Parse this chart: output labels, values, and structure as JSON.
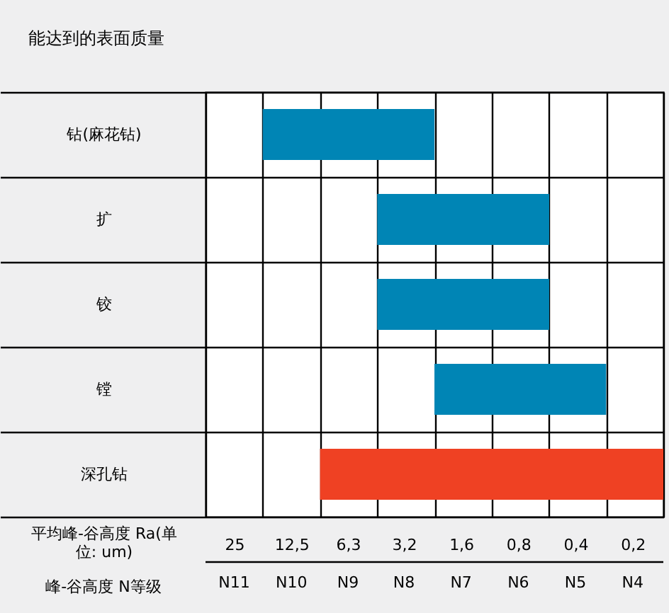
{
  "chart_data": {
    "type": "bar",
    "orientation": "horizontal",
    "title": "能达到的表面质量",
    "xlabel": "平均峰-谷高度 Ra(单位: um)",
    "categories": [
      "钻(麻花钻)",
      "扩",
      "铰",
      "镗",
      "深孔钻"
    ],
    "base": [
      17.7,
      4.42,
      4.42,
      2.21,
      8.84
    ],
    "values": [
      -15.49,
      -3.87,
      -3.87,
      -1.934,
      -8.702
    ],
    "colors": [
      "#0085b5",
      "#0085b5",
      "#0085b5",
      "#0085b5",
      "#ef4123"
    ],
    "log": "x",
    "xlim": [
      35.4,
      0.138
    ],
    "xticks": [
      {
        "value": 35.4,
        "label": null
      },
      {
        "value": 17.7,
        "label": null
      },
      {
        "value": 8.84,
        "label": null
      },
      {
        "value": 4.42,
        "label": null
      },
      {
        "value": 2.21,
        "label": null
      },
      {
        "value": 1.1,
        "label": null
      },
      {
        "value": 0.55,
        "label": null
      },
      {
        "value": 0.276,
        "label": null
      },
      {
        "value": 0.138,
        "label": null
      },
      {
        "value": 25,
        "label": "25"
      },
      {
        "value": 12.5,
        "label": "12,5"
      },
      {
        "value": 6.3,
        "label": "6,3"
      },
      {
        "value": 3.2,
        "label": "3,2"
      },
      {
        "value": 1.6,
        "label": "1,6"
      },
      {
        "value": 0.8,
        "label": "0,8"
      },
      {
        "value": 0.4,
        "label": "0,4"
      },
      {
        "value": 0.2,
        "label": "0,2"
      }
    ],
    "annotations": [
      "峰-谷高度  N等级",
      "N11",
      "N10",
      "N9",
      "N8",
      "N7",
      "N6",
      "N5",
      "N4"
    ],
    "grid": true
  }
}
